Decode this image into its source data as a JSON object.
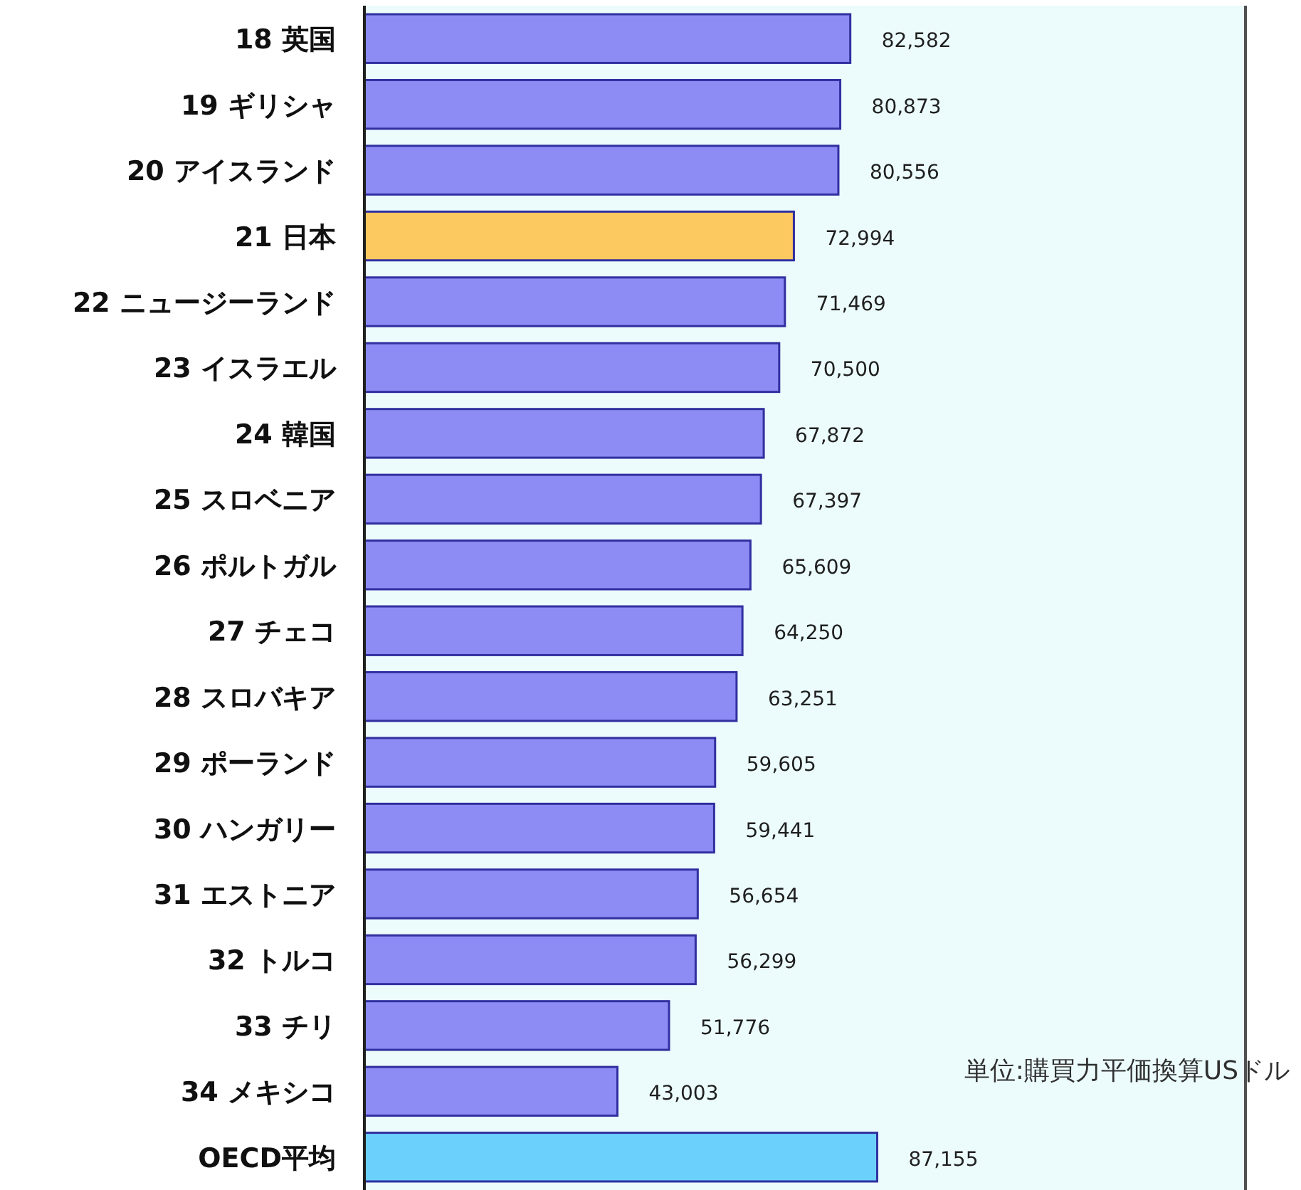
{
  "chart_data": {
    "type": "bar",
    "orientation": "horizontal",
    "categories": [
      "18  英国",
      "19  ギリシャ",
      "20  アイスランド",
      "21  日本",
      "22  ニュージーランド",
      "23  イスラエル",
      "24  韓国",
      "25  スロベニア",
      "26  ポルトガル",
      "27  チェコ",
      "28  スロバキア",
      "29  ポーランド",
      "30  ハンガリー",
      "31  エストニア",
      "32  トルコ",
      "33  チリ",
      "34  メキシコ",
      "OECD平均"
    ],
    "values": [
      82582,
      80873,
      80556,
      72994,
      71469,
      70500,
      67872,
      67397,
      65609,
      64250,
      63251,
      59605,
      59441,
      56654,
      56299,
      51776,
      43003,
      87155
    ],
    "colors": [
      "#8c8cf4",
      "#8c8cf4",
      "#8c8cf4",
      "#fcc860",
      "#8c8cf4",
      "#8c8cf4",
      "#8c8cf4",
      "#8c8cf4",
      "#8c8cf4",
      "#8c8cf4",
      "#8c8cf4",
      "#8c8cf4",
      "#8c8cf4",
      "#8c8cf4",
      "#8c8cf4",
      "#8c8cf4",
      "#8c8cf4",
      "#6cd0fc"
    ],
    "value_labels": [
      "82,582",
      "80,873",
      "80,556",
      "72,994",
      "71,469",
      "70,500",
      "67,872",
      "67,397",
      "65,609",
      "64,250",
      "63,251",
      "59,605",
      "59,441",
      "56,654",
      "56,299",
      "51,776",
      "43,003",
      "87,155"
    ],
    "tick_labels": "y",
    "annotations": [
      "単位:購買力平価換算USドル"
    ]
  }
}
